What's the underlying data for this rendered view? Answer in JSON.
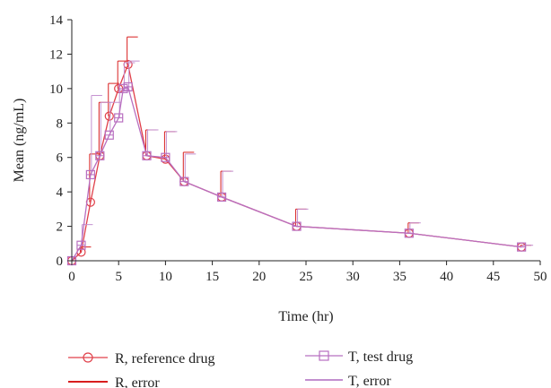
{
  "chart_data": {
    "type": "line",
    "title": "",
    "xlabel": "Time (hr)",
    "ylabel": "Mean (ng/mL)",
    "xlim": [
      0,
      50
    ],
    "ylim": [
      0,
      14
    ],
    "xticks": [
      0,
      5,
      10,
      15,
      20,
      25,
      30,
      35,
      40,
      45,
      50
    ],
    "yticks": [
      0,
      2,
      4,
      6,
      8,
      10,
      12,
      14
    ],
    "grid": false,
    "legend_position": "bottom",
    "series": [
      {
        "name": "R, reference drug",
        "error_name": "R, error",
        "color": "#e0404a",
        "error_color": "#d81e1e",
        "marker": "circle",
        "x": [
          0,
          1,
          2,
          3,
          4,
          5,
          6,
          8,
          10,
          12,
          16,
          24,
          36,
          48
        ],
        "y": [
          0,
          0.5,
          3.4,
          6.1,
          8.4,
          10.0,
          11.4,
          6.1,
          5.9,
          4.6,
          3.7,
          2.0,
          1.6,
          0.8
        ],
        "error": [
          0,
          0.3,
          2.8,
          3.1,
          1.9,
          1.6,
          1.6,
          1.5,
          1.6,
          1.7,
          1.5,
          1.0,
          0.6,
          0.1
        ]
      },
      {
        "name": "T, test drug",
        "error_name": "T, error",
        "color": "#b86fc0",
        "error_color": "#c38fcf",
        "marker": "square",
        "x": [
          0,
          1,
          2,
          3,
          4,
          5,
          5.5,
          6,
          8,
          10,
          12,
          16,
          24,
          36,
          48
        ],
        "y": [
          0,
          0.9,
          5.0,
          6.1,
          7.3,
          8.3,
          10.0,
          10.1,
          6.1,
          6.0,
          4.6,
          3.7,
          2.0,
          1.6,
          0.8
        ],
        "error": [
          0,
          1.2,
          4.6,
          3.1,
          1.9,
          1.6,
          1.5,
          1.5,
          1.5,
          1.5,
          1.6,
          1.5,
          1.0,
          0.6,
          0.1
        ]
      }
    ]
  }
}
